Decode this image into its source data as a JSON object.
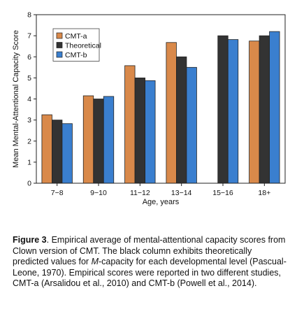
{
  "chart_data": {
    "type": "bar",
    "categories": [
      "7−8",
      "9−10",
      "11−12",
      "13−14",
      "15−16",
      "18+"
    ],
    "series": [
      {
        "name": "CMT-a",
        "color": "#d9894a",
        "values": [
          3.25,
          4.15,
          5.58,
          6.68,
          null,
          6.75
        ]
      },
      {
        "name": "Theoretical",
        "color": "#333333",
        "values": [
          3.0,
          4.0,
          5.0,
          6.0,
          7.0,
          7.0
        ]
      },
      {
        "name": "CMT-b",
        "color": "#3a7fcf",
        "values": [
          2.83,
          4.12,
          4.87,
          5.5,
          6.82,
          7.2
        ]
      }
    ],
    "xlabel": "Age, years",
    "ylabel": "Mean Mental-Attentional Capacity Score",
    "ylim": [
      0,
      8
    ],
    "yticks": [
      0,
      1,
      2,
      3,
      4,
      5,
      6,
      7,
      8
    ],
    "legend_position": "top-left",
    "grid": false
  },
  "caption": {
    "label": "Figure 3",
    "text_before_italic": ". Empirical average of mental-attentional capacity scores from Clown version of CMT. The black column exhibits theoretically predicted values for ",
    "italic": "M",
    "text_after_italic": "-capacity for each developmental level (Pascual-Leone, 1970). Empirical scores were reported in two different studies, CMT-a (Arsalidou et al., 2010) and CMT-b (Powell et al., 2014)."
  }
}
